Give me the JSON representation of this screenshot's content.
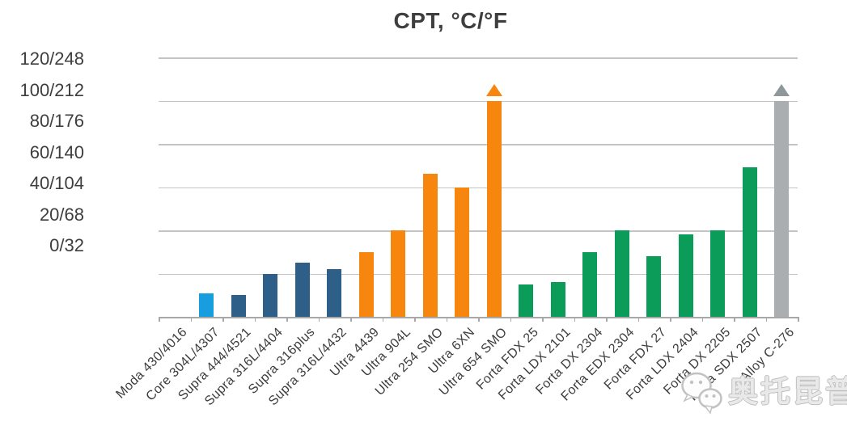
{
  "title": "CPT, °C/°F",
  "watermark": {
    "text": "奥托昆普",
    "icon": "wechat-logo"
  },
  "styles": {
    "grid_color": "#C4C4C4",
    "axis_color": "#A8A8A8",
    "text_color": "#3C3C3C",
    "title_color": "#3E3E3E",
    "overflow_triangle_gray": "#8E989B"
  },
  "chart_data": {
    "type": "bar",
    "title": "CPT, °C/°F",
    "ylabel": "CPT, °C/°F",
    "ylim": [
      0,
      120
    ],
    "y_unit_interval": 20,
    "y_tick_labels": [
      "120/248",
      "100/212",
      "80/176",
      "60/140",
      "40/104",
      "20/68",
      "0/32"
    ],
    "grid": true,
    "legend": false,
    "x_tick_rotation": -45,
    "categories": [
      "Moda 430/4016",
      "Core 304L/4307",
      "Supra 444/4521",
      "Supra 316L/4404",
      "Supra 316plus",
      "Supra 316L/4432",
      "Ultra 4439",
      "Ultra 904L",
      "Ultra 254 SMO",
      "Ultra 6XN",
      "Ultra 654 SMO",
      "Forta FDX 25",
      "Forta LDX 2101",
      "Forta DX 2304",
      "Forta EDX 2304",
      "Forta FDX 27",
      "Forta LDX 2404",
      "Forta DX 2205",
      "Forta SDX 2507",
      "Alloy C-276"
    ],
    "values": [
      0,
      11,
      10,
      20,
      25,
      22,
      30,
      40,
      66,
      60,
      100,
      15,
      16,
      30,
      40,
      28,
      38,
      40,
      69,
      100
    ],
    "exceeds_axis": [
      false,
      false,
      false,
      false,
      false,
      false,
      false,
      false,
      false,
      false,
      true,
      false,
      false,
      false,
      false,
      false,
      false,
      false,
      false,
      true
    ],
    "bar_colors": [
      "#189DDE",
      "#189DDE",
      "#2E5F88",
      "#2E5F88",
      "#2E5F88",
      "#2E5F88",
      "#F7860F",
      "#F7860F",
      "#F7860F",
      "#F7860F",
      "#F7860F",
      "#0A9C58",
      "#0A9C58",
      "#0A9C58",
      "#0A9C58",
      "#0A9C58",
      "#0A9C58",
      "#0A9C58",
      "#0A9C58",
      "#ABAEB0"
    ],
    "overflow_triangle_colors": [
      "#F7860F",
      "#8E989B"
    ]
  }
}
